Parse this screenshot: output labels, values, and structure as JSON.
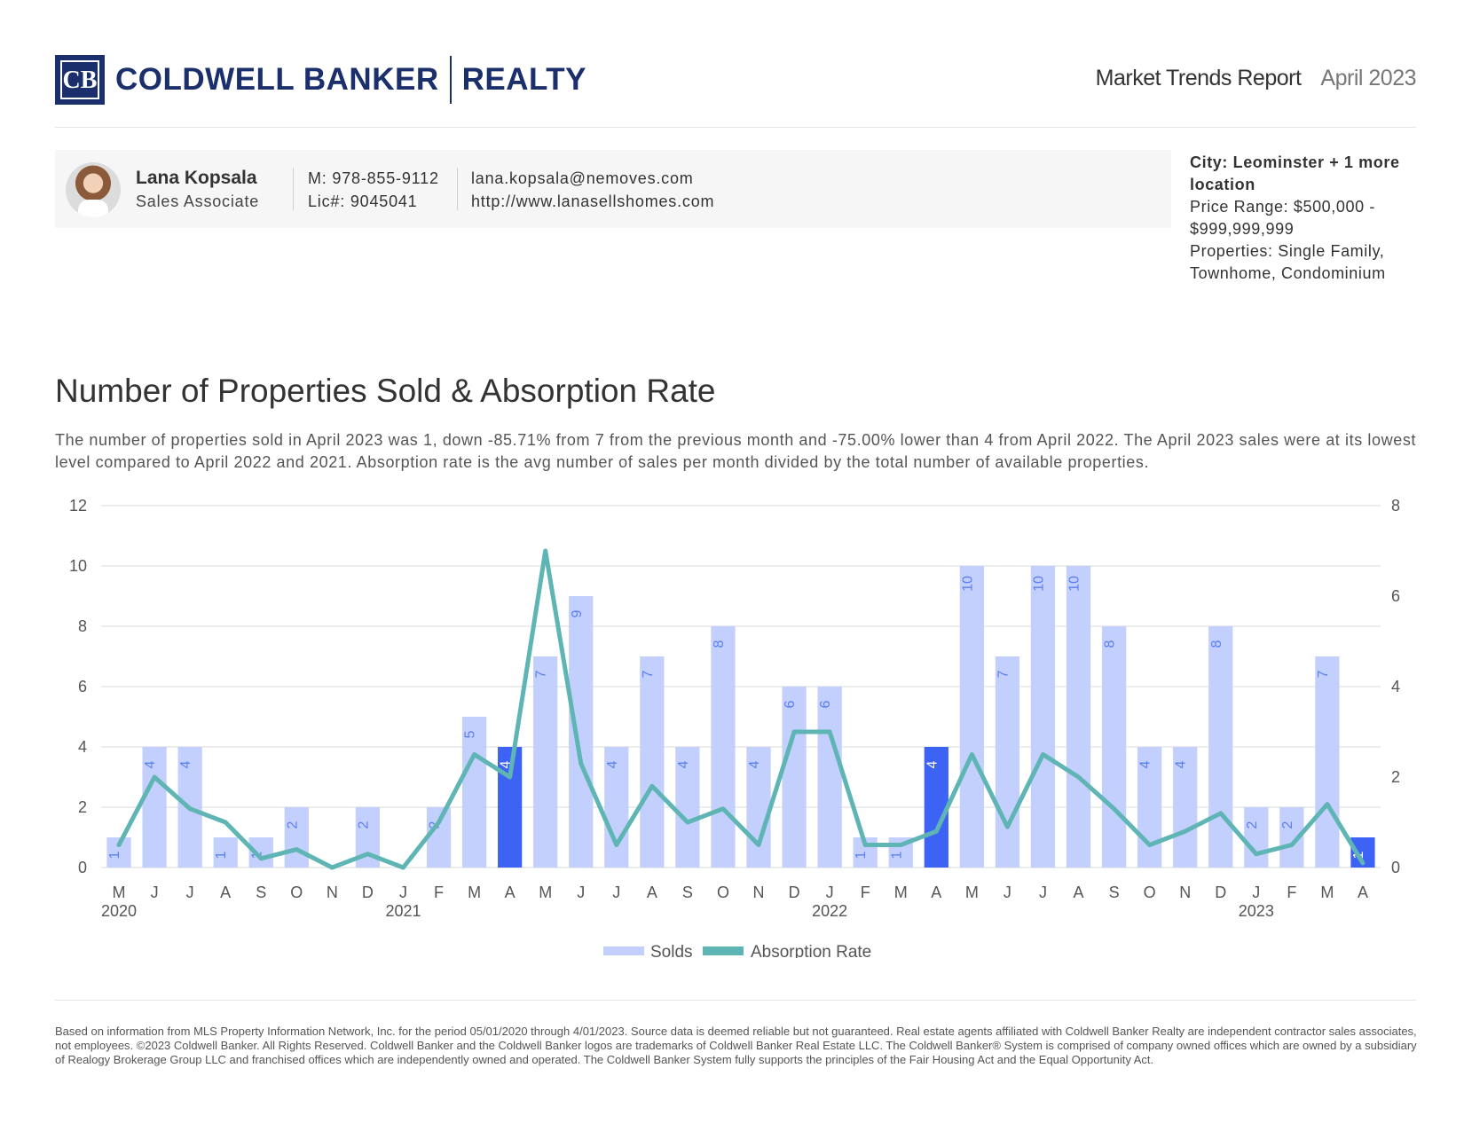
{
  "brand": {
    "name": "COLDWELL BANKER",
    "sub": "REALTY",
    "mark": "CB"
  },
  "report": {
    "title": "Market Trends Report",
    "date": "April 2023"
  },
  "agent": {
    "name": "Lana Kopsala",
    "role": "Sales Associate",
    "mobile": "M: 978-855-9112",
    "license": "Lic#: 9045041",
    "email": "lana.kopsala@nemoves.com",
    "website": "http://www.lanasellshomes.com"
  },
  "filters": {
    "city": "City: Leominster + 1 more location",
    "price": "Price Range: $500,000 - $999,999,999",
    "properties": "Properties: Single Family, Townhome, Condominium"
  },
  "section": {
    "title": "Number of Properties Sold & Absorption Rate",
    "description": "The number of properties sold in April 2023 was 1, down -85.71% from 7 from the previous month and -75.00% lower than 4 from April 2022. The April 2023 sales were at its lowest level compared to April 2022 and 2021. Absorption rate is the avg number of sales per month divided by the total number of available properties."
  },
  "chart_data": {
    "type": "bar",
    "categories": [
      "M",
      "J",
      "J",
      "A",
      "S",
      "O",
      "N",
      "D",
      "J",
      "F",
      "M",
      "A",
      "M",
      "J",
      "J",
      "A",
      "S",
      "O",
      "N",
      "D",
      "J",
      "F",
      "M",
      "A",
      "M",
      "J",
      "J",
      "A",
      "S",
      "O",
      "N",
      "D",
      "J",
      "F",
      "M",
      "A"
    ],
    "year_labels": [
      {
        "index": 0,
        "label": "2020"
      },
      {
        "index": 8,
        "label": "2021"
      },
      {
        "index": 20,
        "label": "2022"
      },
      {
        "index": 32,
        "label": "2023"
      }
    ],
    "series": [
      {
        "name": "Solds",
        "type": "bar",
        "axis": "left",
        "values": [
          1,
          4,
          4,
          1,
          1,
          2,
          0,
          2,
          0,
          2,
          5,
          4,
          7,
          9,
          4,
          7,
          4,
          8,
          4,
          6,
          6,
          1,
          1,
          4,
          10,
          7,
          10,
          10,
          8,
          4,
          4,
          8,
          2,
          2,
          7,
          1
        ]
      },
      {
        "name": "Absorption Rate",
        "type": "line",
        "axis": "right",
        "values": [
          0.5,
          2.0,
          1.3,
          1.0,
          0.2,
          0.4,
          0.0,
          0.3,
          0.0,
          1.0,
          2.5,
          2.0,
          7.0,
          2.3,
          0.5,
          1.8,
          1.0,
          1.3,
          0.5,
          3.0,
          3.0,
          0.5,
          0.5,
          0.8,
          2.5,
          0.9,
          2.5,
          2.0,
          1.3,
          0.5,
          0.8,
          1.2,
          0.3,
          0.5,
          1.4,
          0.1
        ]
      }
    ],
    "highlight_indices": [
      11,
      23,
      35
    ],
    "y_left": {
      "min": 0,
      "max": 12,
      "ticks": [
        0,
        2,
        4,
        6,
        8,
        10,
        12
      ]
    },
    "y_right": {
      "min": 0,
      "max": 8,
      "ticks": [
        0,
        2,
        4,
        6,
        8
      ]
    },
    "grid": true,
    "legend": "bottom-center",
    "colors": {
      "bar": "#c3cffc",
      "bar_highlight": "#3d63f5",
      "line": "#5fb4b4",
      "bar_label": "#5a7ff0",
      "grid": "#e6e6e6",
      "axis_text": "#555555"
    }
  },
  "disclaimer": "Based on information from MLS Property Information Network, Inc. for the period 05/01/2020 through 4/01/2023. Source data is deemed reliable but not guaranteed. Real estate agents affiliated with Coldwell Banker Realty are independent contractor sales associates, not employees. ©2023 Coldwell Banker. All Rights Reserved. Coldwell Banker and the Coldwell Banker logos are trademarks of Coldwell Banker Real Estate LLC. The Coldwell Banker® System is comprised of company owned offices which are owned by a subsidiary of Realogy Brokerage Group LLC and franchised offices which are independently owned and operated. The Coldwell Banker System fully supports the principles of the Fair Housing Act and the Equal Opportunity Act."
}
